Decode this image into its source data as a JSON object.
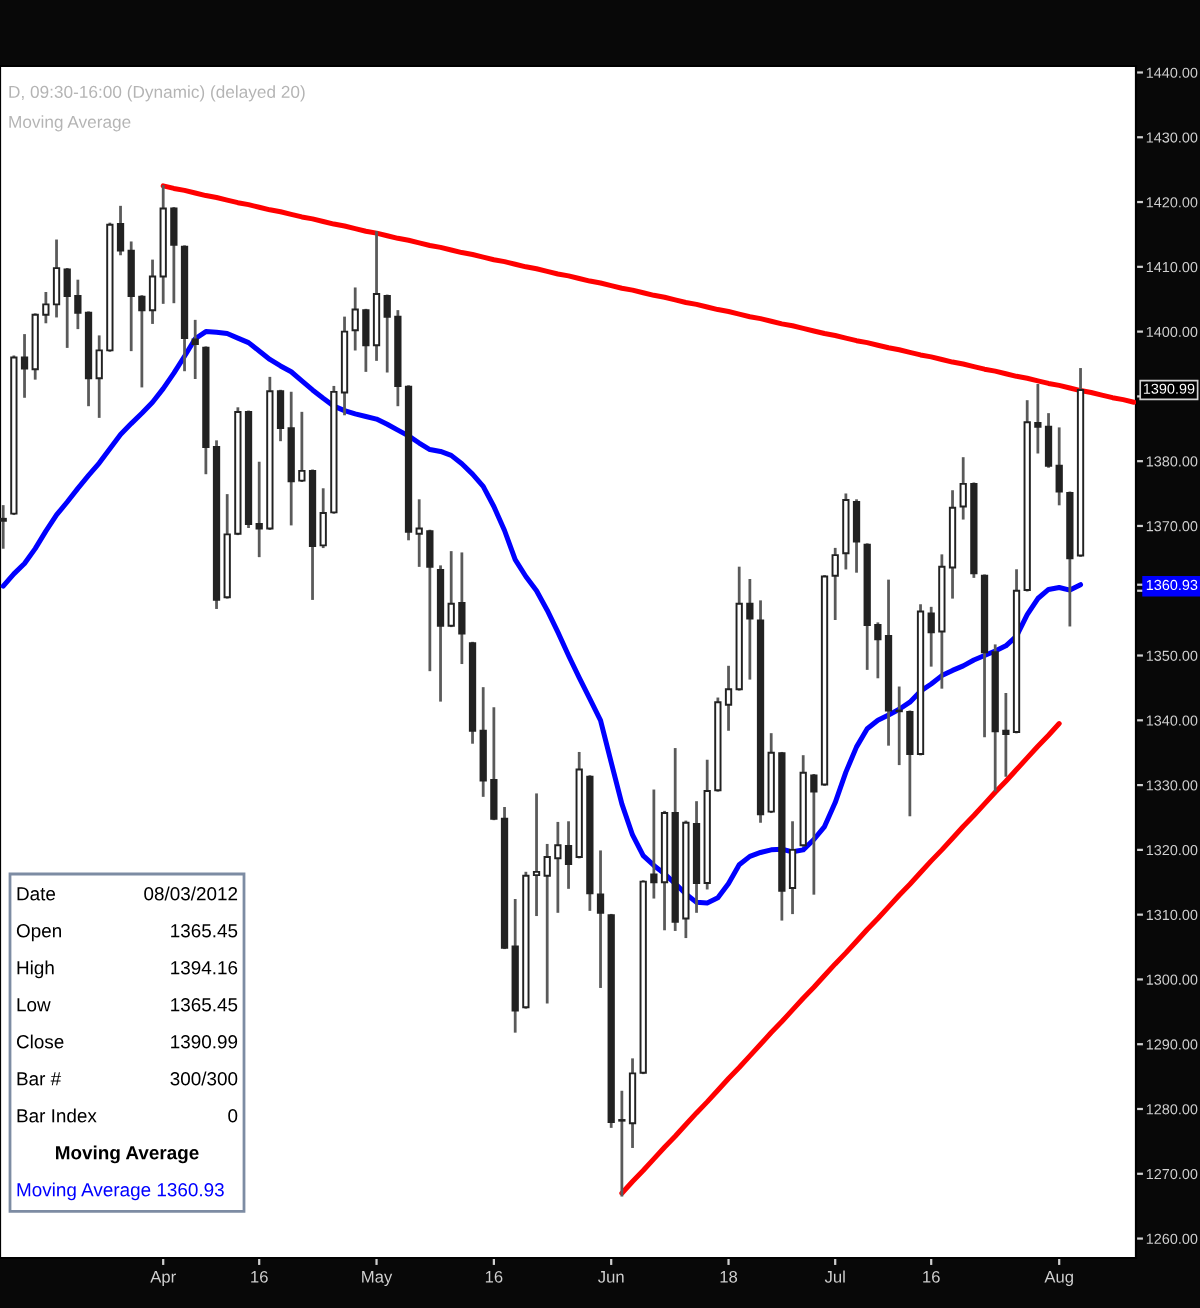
{
  "chart_data": {
    "type": "candlestick",
    "title": "D, 09:30-16:00 (Dynamic) (delayed 20)",
    "subtitle": "Moving Average",
    "color": "#222222",
    "categories": [
      null,
      null,
      null,
      null,
      null,
      null,
      null,
      null,
      null,
      null,
      null,
      null,
      null,
      null,
      null,
      "Apr",
      null,
      null,
      null,
      null,
      null,
      null,
      null,
      null,
      "16",
      null,
      null,
      null,
      null,
      null,
      null,
      null,
      null,
      null,
      null,
      "May",
      null,
      null,
      null,
      null,
      null,
      null,
      null,
      null,
      null,
      null,
      "16",
      null,
      null,
      null,
      null,
      null,
      null,
      null,
      null,
      null,
      null,
      "Jun",
      null,
      null,
      null,
      null,
      null,
      null,
      null,
      null,
      null,
      null,
      "18",
      null,
      null,
      null,
      null,
      null,
      null,
      null,
      null,
      null,
      "Jul",
      null,
      null,
      null,
      null,
      null,
      null,
      null,
      null,
      "16",
      null,
      null,
      null,
      null,
      null,
      null,
      null,
      null,
      null,
      null,
      null,
      "Aug",
      null,
      null,
      null,
      null,
      null,
      null,
      null
    ],
    "ohlc": [
      [
        1370.8,
        1373.0,
        1366.7,
        1371.1
      ],
      [
        1371.9,
        1396.1,
        1371.9,
        1396.0
      ],
      [
        1396.0,
        1399.4,
        1390.0,
        1394.3
      ],
      [
        1394.2,
        1402.6,
        1392.8,
        1402.6
      ],
      [
        1402.6,
        1405.9,
        1401.5,
        1404.2
      ],
      [
        1404.2,
        1414.0,
        1402.4,
        1409.8
      ],
      [
        1409.6,
        1409.6,
        1397.7,
        1405.5
      ],
      [
        1405.5,
        1407.8,
        1400.6,
        1402.9
      ],
      [
        1402.9,
        1402.9,
        1388.7,
        1392.8
      ],
      [
        1392.8,
        1399.2,
        1386.9,
        1397.1
      ],
      [
        1397.1,
        1416.6,
        1397.1,
        1416.5
      ],
      [
        1416.6,
        1419.2,
        1412.0,
        1412.5
      ],
      [
        1412.5,
        1413.7,
        1397.2,
        1405.5
      ],
      [
        1405.4,
        1405.4,
        1391.6,
        1403.3
      ],
      [
        1403.3,
        1410.9,
        1401.4,
        1408.5
      ],
      [
        1408.5,
        1422.4,
        1404.5,
        1419.0
      ],
      [
        1419.0,
        1419.0,
        1404.6,
        1413.4
      ],
      [
        1413.1,
        1413.1,
        1394.1,
        1399.0
      ],
      [
        1398.8,
        1401.6,
        1392.9,
        1398.1
      ],
      [
        1397.5,
        1397.5,
        1378.2,
        1382.2
      ],
      [
        1382.2,
        1383.0,
        1357.4,
        1358.6
      ],
      [
        1359.0,
        1374.7,
        1359.0,
        1368.7
      ],
      [
        1368.8,
        1388.1,
        1368.8,
        1387.6
      ],
      [
        1387.6,
        1387.6,
        1369.9,
        1370.3
      ],
      [
        1370.3,
        1379.7,
        1365.4,
        1369.6
      ],
      [
        1369.6,
        1392.8,
        1369.6,
        1390.8
      ],
      [
        1390.8,
        1390.8,
        1383.3,
        1385.1
      ],
      [
        1385.1,
        1390.5,
        1370.3,
        1376.9
      ],
      [
        1377.0,
        1387.4,
        1377.0,
        1378.5
      ],
      [
        1378.5,
        1378.5,
        1358.8,
        1366.9
      ],
      [
        1367.0,
        1375.6,
        1366.8,
        1372.0
      ],
      [
        1372.1,
        1391.4,
        1372.1,
        1390.7
      ],
      [
        1390.6,
        1402.1,
        1387.3,
        1400.0
      ],
      [
        1400.2,
        1406.6,
        1397.3,
        1403.4
      ],
      [
        1403.3,
        1403.3,
        1394.0,
        1397.9
      ],
      [
        1397.9,
        1415.3,
        1395.7,
        1405.8
      ],
      [
        1405.5,
        1405.5,
        1393.9,
        1402.3
      ],
      [
        1402.3,
        1403.1,
        1388.7,
        1391.6
      ],
      [
        1391.5,
        1391.5,
        1368.0,
        1369.1
      ],
      [
        1368.8,
        1373.9,
        1363.9,
        1369.6
      ],
      [
        1369.2,
        1369.2,
        1347.8,
        1363.7
      ],
      [
        1363.2,
        1363.7,
        1343.1,
        1354.6
      ],
      [
        1354.6,
        1365.9,
        1354.6,
        1358.0
      ],
      [
        1358.1,
        1365.7,
        1348.9,
        1353.4
      ],
      [
        1351.9,
        1351.9,
        1336.6,
        1338.4
      ],
      [
        1338.4,
        1344.9,
        1328.4,
        1330.7
      ],
      [
        1330.8,
        1341.8,
        1324.8,
        1324.8
      ],
      [
        1324.8,
        1326.4,
        1304.9,
        1304.9
      ],
      [
        1305.1,
        1312.2,
        1292.0,
        1295.2
      ],
      [
        1295.7,
        1316.4,
        1295.7,
        1316.0
      ],
      [
        1316.1,
        1328.5,
        1310.0,
        1316.6
      ],
      [
        1316.0,
        1320.7,
        1296.5,
        1318.9
      ],
      [
        1318.7,
        1324.1,
        1310.5,
        1320.7
      ],
      [
        1320.6,
        1324.2,
        1314.2,
        1317.8
      ],
      [
        1318.9,
        1334.9,
        1318.9,
        1332.4
      ],
      [
        1331.3,
        1331.3,
        1310.8,
        1313.3
      ],
      [
        1313.1,
        1319.7,
        1298.9,
        1310.3
      ],
      [
        1309.9,
        1309.9,
        1277.3,
        1278.0
      ],
      [
        1278.3,
        1282.6,
        1266.7,
        1278.2
      ],
      [
        1277.8,
        1287.6,
        1274.2,
        1285.5
      ],
      [
        1285.6,
        1315.1,
        1285.6,
        1315.1
      ],
      [
        1316.2,
        1329.1,
        1312.7,
        1315.0
      ],
      [
        1315.0,
        1325.8,
        1307.8,
        1325.7
      ],
      [
        1325.7,
        1335.5,
        1307.7,
        1308.9
      ],
      [
        1309.4,
        1324.3,
        1306.6,
        1324.2
      ],
      [
        1324.0,
        1327.3,
        1310.5,
        1314.9
      ],
      [
        1314.9,
        1333.7,
        1314.1,
        1329.1
      ],
      [
        1329.2,
        1343.3,
        1329.2,
        1342.8
      ],
      [
        1342.4,
        1348.2,
        1338.6,
        1344.8
      ],
      [
        1344.8,
        1363.5,
        1344.8,
        1358.0
      ],
      [
        1358.0,
        1361.6,
        1346.5,
        1355.7
      ],
      [
        1355.4,
        1358.3,
        1324.4,
        1325.5
      ],
      [
        1325.9,
        1337.8,
        1325.9,
        1335.0
      ],
      [
        1334.9,
        1334.9,
        1309.3,
        1313.7
      ],
      [
        1314.1,
        1324.2,
        1310.3,
        1320.0
      ],
      [
        1320.7,
        1334.4,
        1320.7,
        1331.9
      ],
      [
        1331.5,
        1331.5,
        1313.3,
        1329.0
      ],
      [
        1330.1,
        1362.2,
        1330.1,
        1362.2
      ],
      [
        1362.3,
        1366.4,
        1355.7,
        1365.5
      ],
      [
        1365.8,
        1374.8,
        1363.5,
        1374.0
      ],
      [
        1373.7,
        1373.9,
        1363.0,
        1367.6
      ],
      [
        1367.1,
        1367.1,
        1348.0,
        1354.7
      ],
      [
        1354.7,
        1354.9,
        1346.7,
        1352.5
      ],
      [
        1353.0,
        1361.5,
        1336.3,
        1341.5
      ],
      [
        1341.4,
        1345.0,
        1333.3,
        1341.5
      ],
      [
        1341.3,
        1341.3,
        1325.4,
        1334.8
      ],
      [
        1334.8,
        1357.7,
        1334.8,
        1356.8
      ],
      [
        1356.5,
        1357.3,
        1348.5,
        1353.6
      ],
      [
        1353.7,
        1365.4,
        1345.1,
        1363.7
      ],
      [
        1363.6,
        1375.3,
        1359.0,
        1372.8
      ],
      [
        1373.0,
        1380.4,
        1371.2,
        1376.5
      ],
      [
        1376.5,
        1376.5,
        1362.2,
        1362.7
      ],
      [
        1362.3,
        1362.3,
        1337.6,
        1350.5
      ],
      [
        1350.5,
        1351.5,
        1329.2,
        1338.3
      ],
      [
        1338.4,
        1344.0,
        1331.5,
        1337.9
      ],
      [
        1338.2,
        1363.1,
        1338.2,
        1360.0
      ],
      [
        1360.1,
        1389.2,
        1360.1,
        1386.0
      ],
      [
        1385.9,
        1391.7,
        1381.4,
        1385.3
      ],
      [
        1385.3,
        1387.2,
        1379.2,
        1379.3
      ],
      [
        1379.3,
        1385.0,
        1373.4,
        1375.3
      ],
      [
        1375.1,
        1375.1,
        1354.7,
        1365.0
      ],
      [
        1365.45,
        1394.16,
        1365.45,
        1390.99
      ],
      null,
      null,
      null,
      null,
      null
    ],
    "value_labels": [
      null,
      null,
      null,
      null,
      null,
      null,
      null,
      null,
      null,
      null,
      null,
      null,
      null,
      null,
      null,
      null,
      null,
      null,
      null,
      null,
      null,
      null,
      null,
      null,
      null,
      null,
      null,
      null,
      null,
      null,
      null,
      null,
      null,
      null,
      null,
      null,
      null,
      null,
      null,
      null,
      null,
      null,
      null,
      null,
      null,
      null,
      null,
      null,
      null,
      null,
      null,
      null,
      null,
      null,
      null,
      null,
      null,
      null,
      null,
      null,
      null,
      null,
      null,
      null,
      null,
      null,
      null,
      null,
      null,
      null,
      null,
      null,
      null,
      null,
      null,
      null,
      null,
      null,
      null,
      null,
      null,
      null,
      null,
      null,
      null,
      null,
      null,
      null,
      null,
      null,
      null,
      null,
      null,
      null,
      null,
      null,
      null,
      null,
      null,
      null,
      null,
      "1390.99",
      null,
      null,
      null,
      null,
      null
    ],
    "series": [
      {
        "type": "line",
        "color": "#0000ff",
        "values": [
          1360.7,
          1362.6,
          1364.2,
          1366.5,
          1369.2,
          1371.7,
          1373.7,
          1375.8,
          1377.8,
          1379.7,
          1381.9,
          1384.1,
          1385.8,
          1387.4,
          1389.1,
          1391.2,
          1393.6,
          1396.2,
          1398.9,
          1400.0,
          1399.9,
          1399.7,
          1399.0,
          1398.3,
          1397.0,
          1395.7,
          1394.7,
          1393.8,
          1392.4,
          1391.0,
          1389.7,
          1388.5,
          1387.8,
          1387.3,
          1386.9,
          1386.5,
          1385.7,
          1384.8,
          1383.9,
          1382.8,
          1381.8,
          1381.5,
          1380.9,
          1379.6,
          1378.0,
          1376.1,
          1373.0,
          1369.3,
          1364.8,
          1362.2,
          1360.0,
          1357.0,
          1353.6,
          1350.0,
          1346.6,
          1343.3,
          1340.0,
          1333.5,
          1327.1,
          1322.3,
          1319.1,
          1317.6,
          1316.3,
          1314.8,
          1313.2,
          1311.9,
          1311.8,
          1312.6,
          1314.8,
          1317.7,
          1319.0,
          1319.6,
          1320.0,
          1320.1,
          1319.7,
          1320.0,
          1321.6,
          1323.6,
          1327.3,
          1332.0,
          1335.9,
          1338.7,
          1340.0,
          1340.8,
          1341.7,
          1342.8,
          1344.5,
          1345.6,
          1346.9,
          1347.7,
          1348.4,
          1349.3,
          1350.0,
          1350.7,
          1351.5,
          1353.0,
          1356.3,
          1358.8,
          1360.2,
          1360.5,
          1360.1,
          1360.93,
          null,
          null,
          null,
          null,
          null
        ]
      },
      {
        "type": "line",
        "color": "#ff0000",
        "values": [
          null,
          null,
          null,
          null,
          null,
          null,
          null,
          null,
          null,
          null,
          null,
          null,
          null,
          null,
          null,
          1422.5,
          1422.1,
          1421.8,
          1421.4,
          1421.0,
          1420.7,
          1420.3,
          1419.9,
          1419.6,
          1419.2,
          1418.8,
          1418.5,
          1418.1,
          1417.7,
          1417.4,
          1417.0,
          1416.6,
          1416.3,
          1415.9,
          1415.5,
          1415.2,
          1414.8,
          1414.4,
          1414.1,
          1413.7,
          1413.3,
          1413.0,
          1412.6,
          1412.2,
          1411.9,
          1411.5,
          1411.1,
          1410.8,
          1410.4,
          1410.0,
          1409.7,
          1409.3,
          1408.9,
          1408.6,
          1408.2,
          1407.8,
          1407.5,
          1407.1,
          1406.7,
          1406.4,
          1406.0,
          1405.6,
          1405.3,
          1404.9,
          1404.5,
          1404.2,
          1403.8,
          1403.4,
          1403.1,
          1402.7,
          1402.3,
          1402.0,
          1401.6,
          1401.2,
          1400.9,
          1400.5,
          1400.1,
          1399.7,
          1399.4,
          1399.0,
          1398.6,
          1398.3,
          1397.9,
          1397.5,
          1397.2,
          1396.8,
          1396.4,
          1396.1,
          1395.7,
          1395.3,
          1395.0,
          1394.6,
          1394.2,
          1393.9,
          1393.5,
          1393.1,
          1392.8,
          1392.4,
          1392.0,
          1391.7,
          1391.3,
          1390.9,
          1390.6,
          1390.2,
          1389.8,
          1389.5,
          1389.1
        ]
      },
      {
        "type": "line",
        "color": "#ff0000",
        "values": [
          null,
          null,
          null,
          null,
          null,
          null,
          null,
          null,
          null,
          null,
          null,
          null,
          null,
          null,
          null,
          null,
          null,
          null,
          null,
          null,
          null,
          null,
          null,
          null,
          null,
          null,
          null,
          null,
          null,
          null,
          null,
          null,
          null,
          null,
          null,
          null,
          null,
          null,
          null,
          null,
          null,
          null,
          null,
          null,
          null,
          null,
          null,
          null,
          null,
          null,
          null,
          null,
          null,
          null,
          null,
          null,
          null,
          null,
          1267.0,
          1268.8,
          1270.5,
          1272.3,
          1274.1,
          1275.8,
          1277.6,
          1279.4,
          1281.1,
          1282.9,
          1284.7,
          1286.4,
          1288.2,
          1290.0,
          1291.8,
          1293.5,
          1295.3,
          1297.1,
          1298.8,
          1300.6,
          1302.4,
          1304.1,
          1305.9,
          1307.7,
          1309.4,
          1311.2,
          1313.0,
          1314.7,
          1316.5,
          1318.3,
          1320.0,
          1321.8,
          1323.6,
          1325.3,
          1327.1,
          1328.9,
          1330.6,
          1332.4,
          1334.2,
          1336.0,
          1337.7,
          1339.5,
          null,
          null,
          null,
          null,
          null,
          null,
          null
        ]
      }
    ],
    "ylim": [
      1257,
      1441
    ],
    "yticks": [
      {
        "value": 1260,
        "label": "1260.00"
      },
      {
        "value": 1270,
        "label": "1270.00"
      },
      {
        "value": 1280,
        "label": "1280.00"
      },
      {
        "value": 1290,
        "label": "1290.00"
      },
      {
        "value": 1300,
        "label": "1300.00"
      },
      {
        "value": 1310,
        "label": "1310.00"
      },
      {
        "value": 1320,
        "label": "1320.00"
      },
      {
        "value": 1330,
        "label": "1330.00"
      },
      {
        "value": 1340,
        "label": "1340.00"
      },
      {
        "value": 1350,
        "label": "1350.00"
      },
      {
        "value": 1360,
        "label": null
      },
      {
        "value": 1360.93,
        "label": "1360.93"
      },
      {
        "value": 1370,
        "label": "1370.00"
      },
      {
        "value": 1380,
        "label": "1380.00"
      },
      {
        "value": 1390,
        "label": null
      },
      {
        "value": 1400,
        "label": "1400.00"
      },
      {
        "value": 1410,
        "label": "1410.00"
      },
      {
        "value": 1420,
        "label": "1420.00"
      },
      {
        "value": 1430,
        "label": "1430.00"
      },
      {
        "value": 1440,
        "label": "1440.00"
      }
    ],
    "annotations": [
      "Date",
      "08/03/2012",
      "Open",
      "1365.45",
      "High",
      "1394.16",
      "Low",
      "1365.45",
      "Close",
      "1390.99",
      "Bar #",
      "300/300",
      "Bar Index",
      "0",
      "Moving Average",
      "Moving Average 1360.93"
    ]
  }
}
